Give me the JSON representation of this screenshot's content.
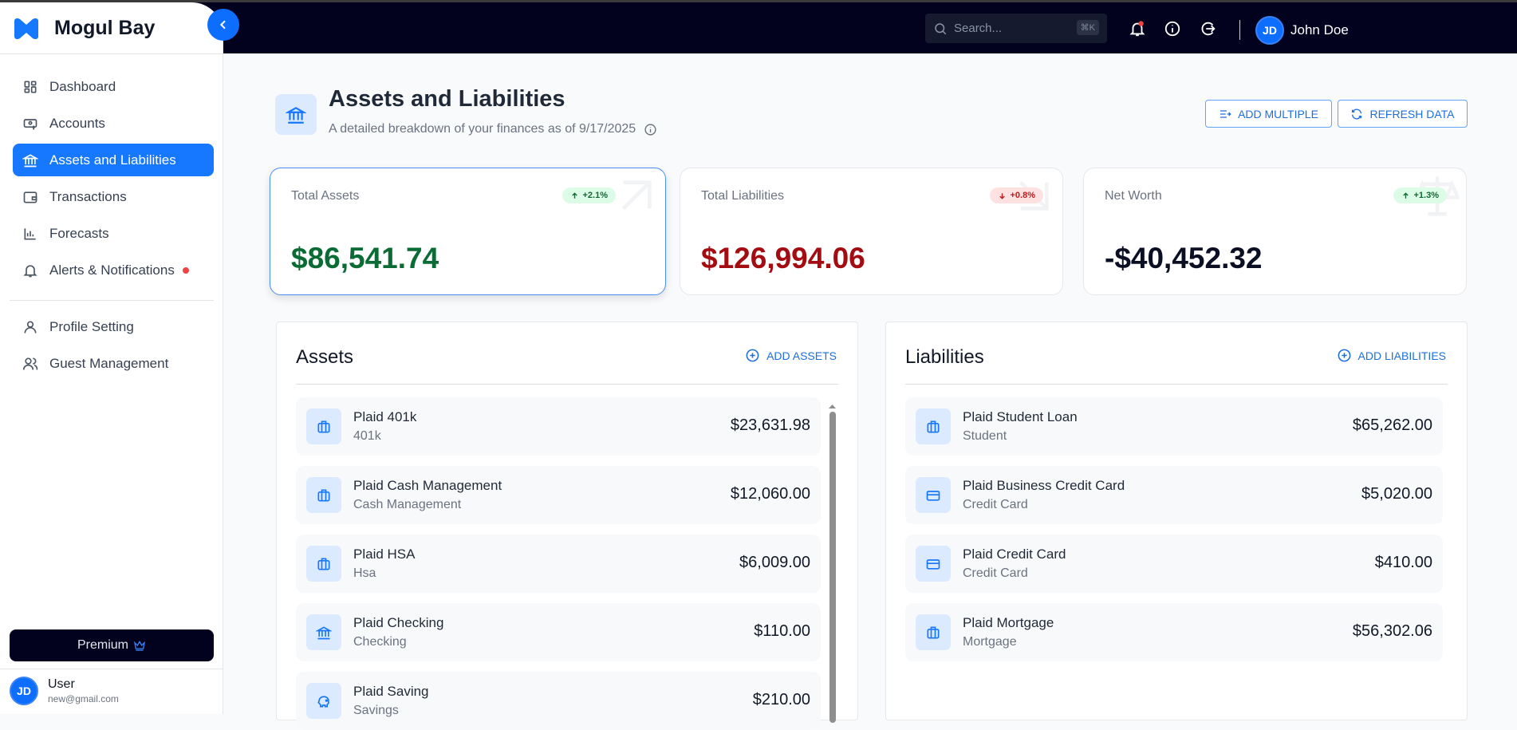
{
  "app": {
    "name": "Mogul Bay"
  },
  "header": {
    "search_placeholder": "Search...",
    "search_shortcut": "⌘K",
    "user_initials": "JD",
    "user_name": "John Doe"
  },
  "sidebar": {
    "items": [
      {
        "label": "Dashboard",
        "icon": "dashboard-icon"
      },
      {
        "label": "Accounts",
        "icon": "accounts-icon"
      },
      {
        "label": "Assets and Liabilities",
        "icon": "bank-icon",
        "active": true
      },
      {
        "label": "Transactions",
        "icon": "wallet-icon"
      },
      {
        "label": "Forecasts",
        "icon": "bar-chart-icon"
      },
      {
        "label": "Alerts & Notifications",
        "icon": "bell-icon",
        "dot": true
      }
    ],
    "items2": [
      {
        "label": "Profile Setting",
        "icon": "user-icon"
      },
      {
        "label": "Guest Management",
        "icon": "users-icon"
      }
    ],
    "premium_label": "Premium",
    "user": {
      "initials": "JD",
      "name": "User",
      "email": "new@gmail.com"
    }
  },
  "page": {
    "title": "Assets and Liabilities",
    "subtitle": "A detailed breakdown of your finances as of 9/17/2025",
    "add_multiple": "ADD MULTIPLE",
    "refresh": "REFRESH DATA"
  },
  "cards": [
    {
      "label": "Total Assets",
      "value": "$86,541.74",
      "change": "+2.1%",
      "direction": "up",
      "color": "#0b6b34"
    },
    {
      "label": "Total Liabilities",
      "value": "$126,994.06",
      "change": "+0.8%",
      "direction": "down",
      "color": "#a30d12"
    },
    {
      "label": "Net Worth",
      "value": "-$40,452.32",
      "change": "+1.3%",
      "direction": "up",
      "color": "#0a0f24"
    }
  ],
  "assets": {
    "title": "Assets",
    "add_label": "ADD ASSETS",
    "items": [
      {
        "name": "Plaid 401k",
        "type": "401k",
        "amount": "$23,631.98",
        "icon": "briefcase-icon"
      },
      {
        "name": "Plaid Cash Management",
        "type": "Cash Management",
        "amount": "$12,060.00",
        "icon": "briefcase-icon"
      },
      {
        "name": "Plaid HSA",
        "type": "Hsa",
        "amount": "$6,009.00",
        "icon": "briefcase-icon"
      },
      {
        "name": "Plaid Checking",
        "type": "Checking",
        "amount": "$110.00",
        "icon": "bank-icon"
      },
      {
        "name": "Plaid Saving",
        "type": "Savings",
        "amount": "$210.00",
        "icon": "piggy-bank-icon"
      }
    ]
  },
  "liabilities": {
    "title": "Liabilities",
    "add_label": "ADD LIABILITIES",
    "items": [
      {
        "name": "Plaid Student Loan",
        "type": "Student",
        "amount": "$65,262.00",
        "icon": "briefcase-icon"
      },
      {
        "name": "Plaid Business Credit Card",
        "type": "Credit Card",
        "amount": "$5,020.00",
        "icon": "credit-card-icon"
      },
      {
        "name": "Plaid Credit Card",
        "type": "Credit Card",
        "amount": "$410.00",
        "icon": "credit-card-icon"
      },
      {
        "name": "Plaid Mortgage",
        "type": "Mortgage",
        "amount": "$56,302.06",
        "icon": "briefcase-icon"
      }
    ]
  },
  "colors": {
    "accent": "#1677ff",
    "header_bg": "#02021e"
  }
}
